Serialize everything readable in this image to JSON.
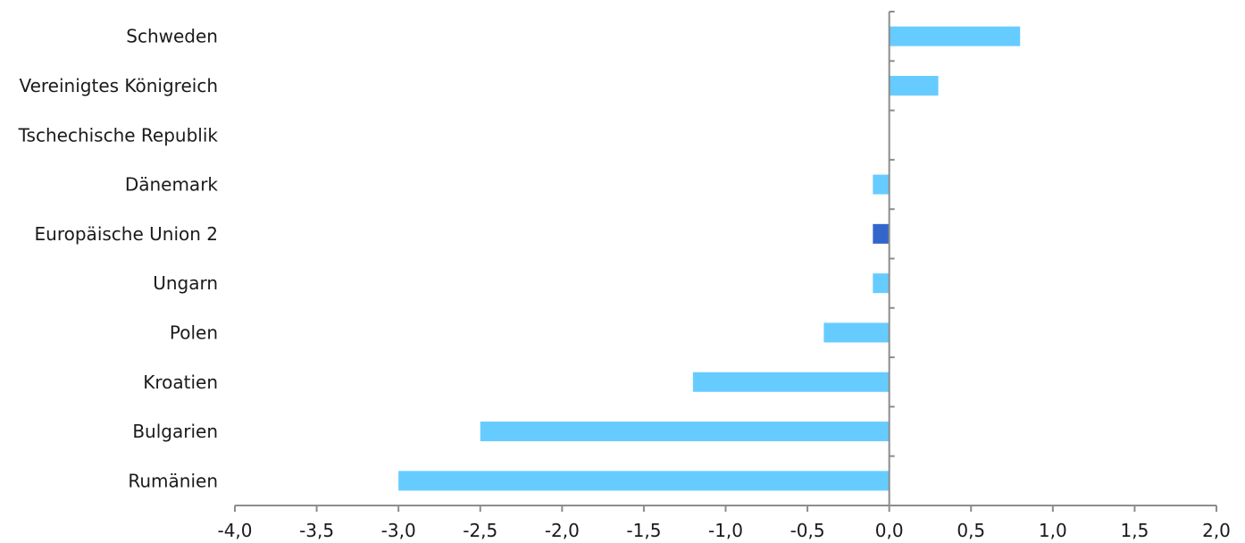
{
  "chart_data": {
    "type": "bar",
    "orientation": "horizontal",
    "categories": [
      "Schweden",
      "Vereinigtes Königreich",
      "Tschechische Republik",
      "Dänemark",
      "Europäische Union 2",
      "Ungarn",
      "Polen",
      "Kroatien",
      "Bulgarien",
      "Rumänien"
    ],
    "values": [
      0.8,
      0.3,
      0.0,
      -0.1,
      -0.1,
      -0.1,
      -0.4,
      -1.2,
      -2.5,
      -3.0
    ],
    "highlight_category": "Europäische Union 2",
    "colors": {
      "bar": "#66ccff",
      "highlight": "#3366cc",
      "axis": "#8c8c8c",
      "text": "#1a1a1a"
    },
    "xlim": [
      -4.0,
      2.0
    ],
    "xticks": [
      -4.0,
      -3.5,
      -3.0,
      -2.5,
      -2.0,
      -1.5,
      -1.0,
      -0.5,
      0.0,
      0.5,
      1.0,
      1.5,
      2.0
    ],
    "xtick_labels": [
      "-4,0",
      "-3,5",
      "-3,0",
      "-2,5",
      "-2,0",
      "-1,5",
      "-1,0",
      "-0,5",
      "0,0",
      "0,5",
      "1,0",
      "1,5",
      "2,0"
    ],
    "title": "",
    "xlabel": "",
    "ylabel": "",
    "grid": false,
    "legend": "none"
  }
}
